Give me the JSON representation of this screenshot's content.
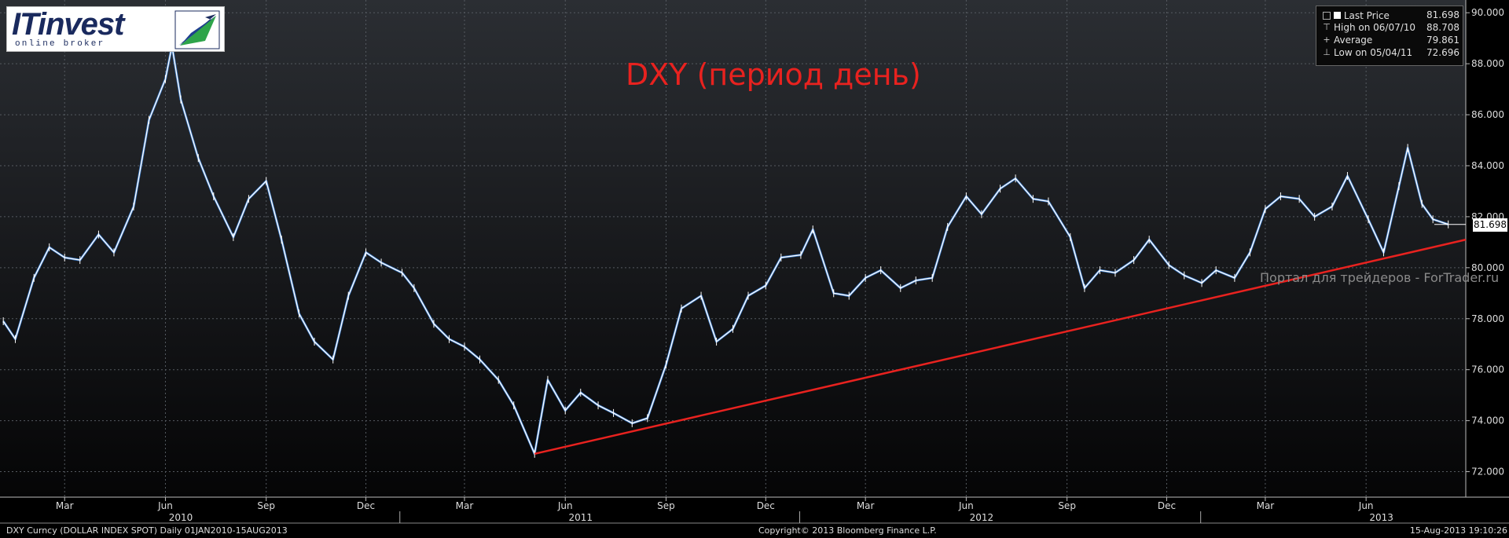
{
  "logo": {
    "word": "ITinvest",
    "sub": "online broker"
  },
  "chart_data": {
    "type": "line",
    "title": "DXY (период день)",
    "subtitle": "",
    "xlabel": "",
    "ylabel": "",
    "ylim": [
      71.0,
      90.5
    ],
    "y_ticks": [
      "72.000",
      "74.000",
      "76.000",
      "78.000",
      "80.000",
      "82.000",
      "84.000",
      "86.000",
      "88.000",
      "90.000"
    ],
    "x_tick_labels": [
      "Mar",
      "Jun",
      "Sep",
      "Dec",
      "Mar",
      "Jun",
      "Sep",
      "Dec",
      "Mar",
      "Jun",
      "Sep",
      "Dec",
      "Mar",
      "Jun"
    ],
    "x_tick_dates": [
      "2010-03-01",
      "2010-06-01",
      "2010-09-01",
      "2010-12-01",
      "2011-03-01",
      "2011-06-01",
      "2011-09-01",
      "2011-12-01",
      "2012-03-01",
      "2012-06-01",
      "2012-09-01",
      "2012-12-01",
      "2013-03-01",
      "2013-06-01"
    ],
    "year_labels": [
      "2010",
      "2011",
      "2012",
      "2013"
    ],
    "year_label_dates": [
      "2010-06-15",
      "2011-06-15",
      "2012-06-15",
      "2013-06-15"
    ],
    "x_range": [
      "2010-01-01",
      "2013-08-31"
    ],
    "grid": true,
    "legend_position": "top-right",
    "series": [
      {
        "name": "Last Price",
        "color": "#ffffff",
        "accent_color": "#3a7fd6",
        "x": [
          "2010-01-04",
          "2010-01-15",
          "2010-02-01",
          "2010-02-15",
          "2010-03-01",
          "2010-03-15",
          "2010-04-01",
          "2010-04-15",
          "2010-05-03",
          "2010-05-17",
          "2010-06-01",
          "2010-06-07",
          "2010-06-15",
          "2010-07-01",
          "2010-07-15",
          "2010-08-02",
          "2010-08-16",
          "2010-09-01",
          "2010-09-15",
          "2010-10-01",
          "2010-10-15",
          "2010-11-01",
          "2010-11-15",
          "2010-12-01",
          "2010-12-15",
          "2011-01-03",
          "2011-01-14",
          "2011-02-01",
          "2011-02-15",
          "2011-03-01",
          "2011-03-15",
          "2011-04-01",
          "2011-04-15",
          "2011-05-04",
          "2011-05-16",
          "2011-06-01",
          "2011-06-15",
          "2011-07-01",
          "2011-07-15",
          "2011-08-01",
          "2011-08-15",
          "2011-09-01",
          "2011-09-15",
          "2011-10-03",
          "2011-10-17",
          "2011-11-01",
          "2011-11-15",
          "2011-12-01",
          "2011-12-15",
          "2012-01-02",
          "2012-01-13",
          "2012-02-01",
          "2012-02-15",
          "2012-03-01",
          "2012-03-15",
          "2012-04-02",
          "2012-04-16",
          "2012-05-01",
          "2012-05-15",
          "2012-06-01",
          "2012-06-15",
          "2012-07-02",
          "2012-07-16",
          "2012-08-01",
          "2012-08-15",
          "2012-09-04",
          "2012-09-17",
          "2012-10-01",
          "2012-10-15",
          "2012-11-01",
          "2012-11-15",
          "2012-12-03",
          "2012-12-17",
          "2013-01-02",
          "2013-01-15",
          "2013-02-01",
          "2013-02-15",
          "2013-03-01",
          "2013-03-15",
          "2013-04-01",
          "2013-04-15",
          "2013-05-01",
          "2013-05-15",
          "2013-06-03",
          "2013-06-17",
          "2013-07-01",
          "2013-07-09",
          "2013-07-22",
          "2013-08-01",
          "2013-08-15"
        ],
        "y": [
          77.9,
          77.2,
          79.6,
          80.8,
          80.4,
          80.3,
          81.3,
          80.6,
          82.4,
          85.8,
          87.4,
          88.7,
          86.6,
          84.3,
          82.8,
          81.2,
          82.7,
          83.4,
          81.1,
          78.2,
          77.1,
          76.4,
          78.9,
          80.6,
          80.2,
          79.8,
          79.2,
          77.8,
          77.2,
          76.9,
          76.4,
          75.6,
          74.6,
          72.7,
          75.6,
          74.4,
          75.1,
          74.6,
          74.3,
          73.9,
          74.1,
          76.2,
          78.4,
          78.9,
          77.1,
          77.6,
          78.9,
          79.3,
          80.4,
          80.5,
          81.5,
          79.0,
          78.9,
          79.6,
          79.9,
          79.2,
          79.5,
          79.6,
          81.6,
          82.8,
          82.1,
          83.1,
          83.5,
          82.7,
          82.6,
          81.2,
          79.2,
          79.9,
          79.8,
          80.3,
          81.1,
          80.1,
          79.7,
          79.4,
          79.9,
          79.6,
          80.6,
          82.3,
          82.8,
          82.7,
          82.0,
          82.4,
          83.6,
          81.9,
          80.6,
          83.2,
          84.7,
          82.5,
          81.9,
          81.7
        ]
      }
    ],
    "trendline": {
      "color": "#e8221f",
      "x": [
        "2011-05-04",
        "2013-08-31"
      ],
      "y": [
        72.7,
        81.1
      ]
    },
    "legend": [
      {
        "symbol": "last",
        "label": "Last Price",
        "value": "81.698"
      },
      {
        "symbol": "high",
        "label": "High on 06/07/10",
        "value": "88.708"
      },
      {
        "symbol": "avg",
        "label": "Average",
        "value": "79.861"
      },
      {
        "symbol": "low",
        "label": "Low on 05/04/11",
        "value": "72.696"
      }
    ],
    "last_value_label": "81.698",
    "last_value": 81.698
  },
  "watermark": "Портал для трейдеров - ForTrader.ru",
  "footer": {
    "left": "DXY Curncy (DOLLAR INDEX SPOT)  Daily 01JAN2010-15AUG2013",
    "center": "Copyright© 2013 Bloomberg Finance L.P.",
    "right": "15-Aug-2013 19:10:26"
  },
  "colors": {
    "background_top": "#2b2e33",
    "background_bottom": "#050506",
    "grid": "#555a60",
    "title": "#e8221f"
  }
}
